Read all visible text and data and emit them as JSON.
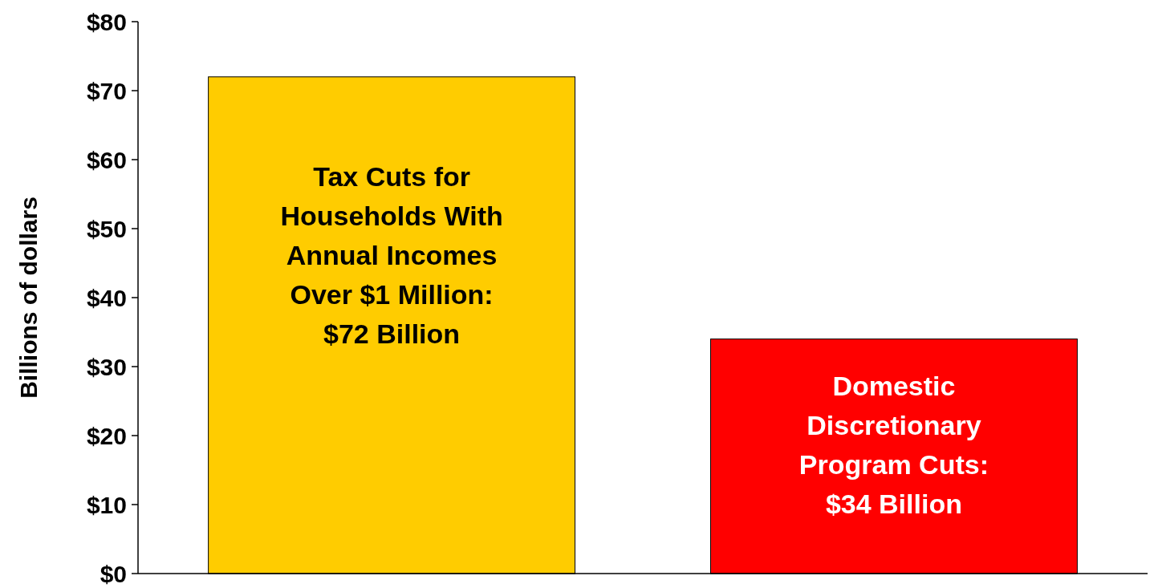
{
  "chart_data": {
    "type": "bar",
    "ylabel": "Billions of dollars",
    "categories": [
      null,
      null
    ],
    "values": [
      72,
      34
    ],
    "colors": [
      "#ffcc00",
      "#ff0000"
    ],
    "value_labels": [
      "Tax Cuts for Households With Annual Incomes Over $1 Million: $72 Billion",
      "Domestic Discretionary Program Cuts: $34 Billion"
    ],
    "ylim": [
      0,
      80
    ],
    "yticks": [
      {
        "value": 0,
        "label": "$0"
      },
      {
        "value": 10,
        "label": "$10"
      },
      {
        "value": 20,
        "label": "$20"
      },
      {
        "value": 30,
        "label": "$30"
      },
      {
        "value": 40,
        "label": "$40"
      },
      {
        "value": 50,
        "label": "$50"
      },
      {
        "value": 60,
        "label": "$60"
      },
      {
        "value": 70,
        "label": "$70"
      },
      {
        "value": 80,
        "label": "$80"
      }
    ],
    "grid": false
  }
}
